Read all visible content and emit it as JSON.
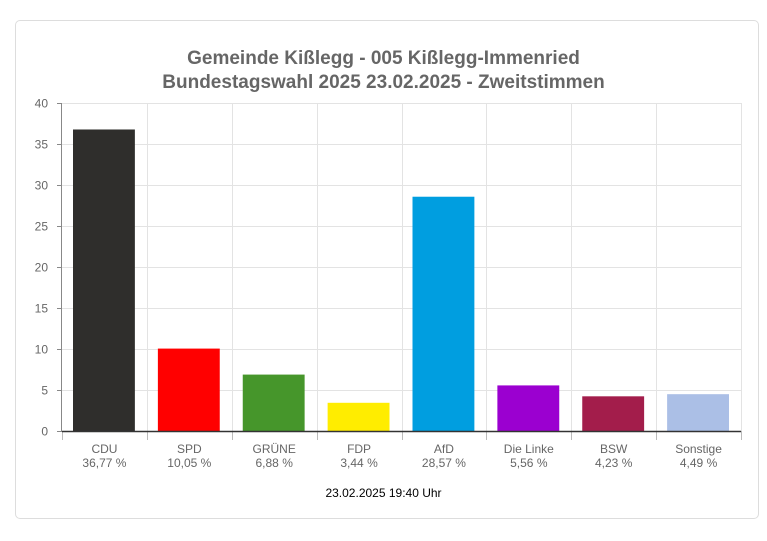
{
  "chart_data": {
    "type": "bar",
    "title": [
      "Gemeinde Kißlegg - 005  Kißlegg-Immenried",
      "Bundestagswahl 2025 23.02.2025  - Zweitstimmen"
    ],
    "categories": [
      "CDU",
      "SPD",
      "GRÜNE",
      "FDP",
      "AfD",
      "Die Linke",
      "BSW",
      "Sonstige"
    ],
    "value_labels": [
      "36,77 %",
      "10,05 %",
      "6,88 %",
      "3,44 %",
      "28,57 %",
      "5,56 %",
      "4,23 %",
      "4,49 %"
    ],
    "values": [
      36.77,
      10.05,
      6.88,
      3.44,
      28.57,
      5.56,
      4.23,
      4.49
    ],
    "colors": [
      "#2f2e2c",
      "#ff0000",
      "#46962b",
      "#ffed00",
      "#009ee0",
      "#9b00d0",
      "#a31d4b",
      "#abbfe6"
    ],
    "ylim": [
      0,
      40
    ],
    "yticks": [
      "0",
      "5",
      "10",
      "15",
      "20",
      "25",
      "30",
      "35",
      "40"
    ],
    "grid": true,
    "xlabel": "",
    "ylabel": ""
  },
  "footer": "23.02.2025 19:40 Uhr"
}
